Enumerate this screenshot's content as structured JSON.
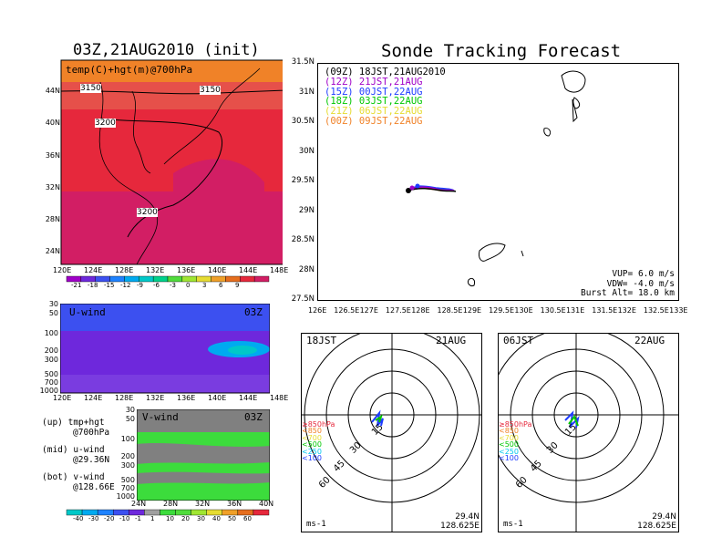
{
  "left_panel": {
    "title": "03Z,21AUG2010 (init)",
    "map_label": "temp(C)+hgt(m)@700hPa",
    "contour_labels": [
      "3150",
      "3150",
      "3200",
      "3200"
    ],
    "lat_ticks": [
      "44N",
      "40N",
      "36N",
      "32N",
      "28N",
      "24N"
    ],
    "lon_ticks": [
      "120E",
      "124E",
      "128E",
      "132E",
      "136E",
      "140E",
      "144E",
      "148E"
    ],
    "colorbar_ticks": [
      "-21",
      "-18",
      "-15",
      "-12",
      "-9",
      "-6",
      "-3",
      "0",
      "3",
      "6",
      "9"
    ],
    "colorbar_colors": [
      "#a000c8",
      "#6e28dc",
      "#3c50f0",
      "#1e82ff",
      "#00aaf0",
      "#00c8c8",
      "#00d28c",
      "#50dc3c",
      "#a0e632",
      "#e6dc32",
      "#f0a028",
      "#e66e1e",
      "#e6283c",
      "#d21e64"
    ]
  },
  "u_wind": {
    "label": "U-wind",
    "time": "03Z",
    "p_ticks": [
      "30",
      "50",
      "100",
      "200",
      "300",
      "500",
      "700",
      "1000"
    ],
    "lon_ticks": [
      "120E",
      "124E",
      "128E",
      "132E",
      "136E",
      "140E",
      "144E",
      "148E"
    ]
  },
  "v_wind": {
    "label": "V-wind",
    "time": "03Z",
    "p_ticks": [
      "30",
      "50",
      "100",
      "200",
      "300",
      "500",
      "700",
      "1000"
    ],
    "lat_ticks": [
      "24N",
      "28N",
      "32N",
      "36N",
      "40N"
    ],
    "colorbar_ticks": [
      "-40",
      "-30",
      "-20",
      "-10",
      "-1",
      "1",
      "10",
      "20",
      "30",
      "40",
      "50",
      "60"
    ],
    "colorbar_colors": [
      "#00c8c8",
      "#00aaf0",
      "#1e82ff",
      "#3c50f0",
      "#6e28dc",
      "#a0a0a0",
      "#3cdc3c",
      "#50dc3c",
      "#a0e632",
      "#e6dc32",
      "#f0a028",
      "#e66e1e",
      "#e6283c"
    ]
  },
  "notes": {
    "line1a": "(up) tmp+hgt",
    "line1b": "@700hPa",
    "line2a": "(mid) u-wind",
    "line2b": "@29.36N",
    "line3a": "(bot) v-wind",
    "line3b": "@128.66E"
  },
  "track_panel": {
    "title": "Sonde Tracking Forecast",
    "lat_ticks": [
      "31.5N",
      "31N",
      "30.5N",
      "30N",
      "29.5N",
      "29N",
      "28.5N",
      "28N",
      "27.5N"
    ],
    "lon_ticks": [
      "126E",
      "126.5E",
      "127E",
      "127.5E",
      "128E",
      "128.5E",
      "129E",
      "129.5E",
      "130E",
      "130.5E",
      "131E",
      "131.5E",
      "132E",
      "132.5E",
      "133E"
    ],
    "legend": [
      {
        "text": "(09Z)  18JST,21AUG2010",
        "color": "#000000"
      },
      {
        "text": "(12Z)  21JST,21AUG",
        "color": "#a000c8"
      },
      {
        "text": "(15Z)  00JST,22AUG",
        "color": "#1e3cff"
      },
      {
        "text": "(18Z)  03JST,22AUG",
        "color": "#00c800"
      },
      {
        "text": "(21Z)  06JST,22AUG",
        "color": "#e6dc32"
      },
      {
        "text": "(00Z)  09JST,22AUG",
        "color": "#f08228"
      }
    ],
    "vup": "VUP=  6.0  m/s",
    "vdw": "VDW= -4.0  m/s",
    "burst": "Burst Alt=  18.0  km"
  },
  "hodo_left": {
    "time_left": "18JST",
    "time_right": "21AUG",
    "ring_labels": [
      "15",
      "30",
      "45",
      "60"
    ],
    "levels": [
      {
        "text": "≥850hPa",
        "color": "#e6283c"
      },
      {
        "text": "<850",
        "color": "#f08228"
      },
      {
        "text": "<700",
        "color": "#e6dc32"
      },
      {
        "text": "<500",
        "color": "#00c800"
      },
      {
        "text": "<250",
        "color": "#00c8f0"
      },
      {
        "text": "<100",
        "color": "#1e3cff"
      }
    ],
    "unit": "ms-1",
    "lat": "29.4N",
    "lon": "128.625E"
  },
  "hodo_right": {
    "time_left": "06JST",
    "time_right": "22AUG",
    "ring_labels": [
      "15",
      "30",
      "45",
      "60"
    ],
    "unit": "ms-1",
    "lat": "29.4N",
    "lon": "128.625E"
  }
}
